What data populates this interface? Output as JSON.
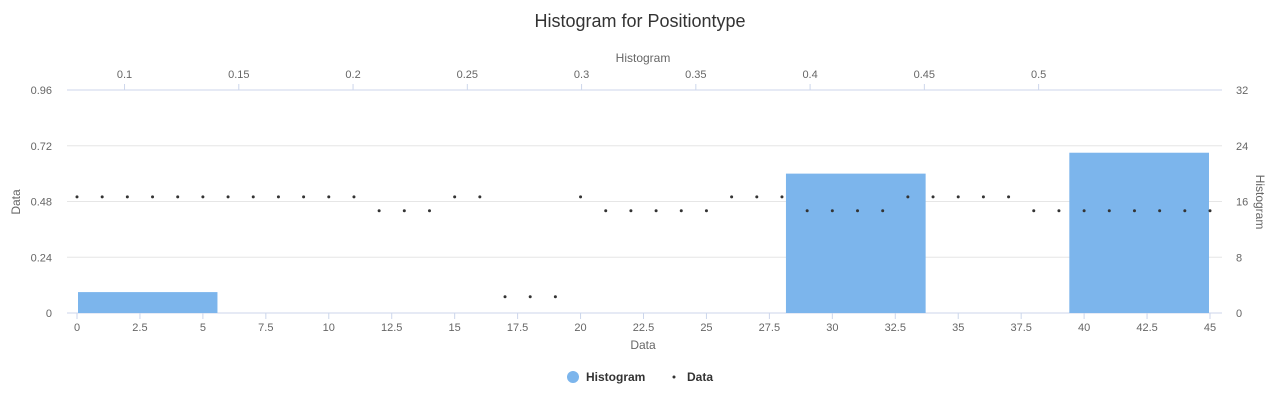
{
  "chart_data": {
    "type": "bar",
    "title": "Histogram for Positiontype",
    "colors": {
      "histogram": "#7cb5ec",
      "data": "#333333"
    },
    "grid": true,
    "legend_placement": "bottom-center",
    "axes": {
      "x_bottom": {
        "title": "Data",
        "ticks": [
          "0",
          "2.5",
          "5",
          "7.5",
          "10",
          "12.5",
          "15",
          "17.5",
          "20",
          "22.5",
          "25",
          "27.5",
          "30",
          "32.5",
          "35",
          "37.5",
          "40",
          "42.5",
          "45"
        ],
        "range": [
          0,
          45
        ]
      },
      "x_top": {
        "title": "Histogram",
        "ticks": [
          "0.1",
          "0.15",
          "0.2",
          "0.25",
          "0.3",
          "0.35",
          "0.4",
          "0.45",
          "0.5"
        ],
        "range": [
          0.0792,
          0.575
        ]
      },
      "y_left": {
        "title": "Data",
        "ticks": [
          "0",
          "0.24",
          "0.48",
          "0.72",
          "0.96"
        ],
        "range": [
          0,
          0.96
        ]
      },
      "y_right": {
        "title": "Histogram",
        "ticks": [
          "0",
          "8",
          "16",
          "24",
          "32"
        ],
        "range": [
          0,
          32
        ]
      }
    },
    "series": [
      {
        "name": "Histogram",
        "type": "bar",
        "bins": [
          {
            "x0": 0.0792,
            "x1": 0.1411,
            "value": 3
          },
          {
            "x0": 0.1411,
            "x1": 0.2031,
            "value": 0
          },
          {
            "x0": 0.2031,
            "x1": 0.2651,
            "value": 0
          },
          {
            "x0": 0.2651,
            "x1": 0.3271,
            "value": 0
          },
          {
            "x0": 0.3271,
            "x1": 0.389,
            "value": 0
          },
          {
            "x0": 0.389,
            "x1": 0.451,
            "value": 20
          },
          {
            "x0": 0.451,
            "x1": 0.513,
            "value": 0
          },
          {
            "x0": 0.513,
            "x1": 0.575,
            "value": 23
          }
        ]
      },
      {
        "name": "Data",
        "type": "scatter",
        "x": [
          0,
          1,
          2,
          3,
          4,
          5,
          6,
          7,
          8,
          9,
          10,
          11,
          12,
          13,
          14,
          15,
          16,
          17,
          18,
          19,
          20,
          21,
          22,
          23,
          24,
          25,
          26,
          27,
          28,
          29,
          30,
          31,
          32,
          33,
          34,
          35,
          36,
          37,
          38,
          39,
          40,
          41,
          42,
          43,
          44,
          45
        ],
        "y": [
          0.5,
          0.5,
          0.5,
          0.5,
          0.5,
          0.5,
          0.5,
          0.5,
          0.5,
          0.5,
          0.5,
          0.5,
          0.44,
          0.44,
          0.44,
          0.5,
          0.5,
          0.07,
          0.07,
          0.07,
          0.5,
          0.44,
          0.44,
          0.44,
          0.44,
          0.44,
          0.5,
          0.5,
          0.5,
          0.44,
          0.44,
          0.44,
          0.44,
          0.5,
          0.5,
          0.5,
          0.5,
          0.5,
          0.44,
          0.44,
          0.44,
          0.44,
          0.44,
          0.44,
          0.44,
          0.44
        ]
      }
    ]
  }
}
